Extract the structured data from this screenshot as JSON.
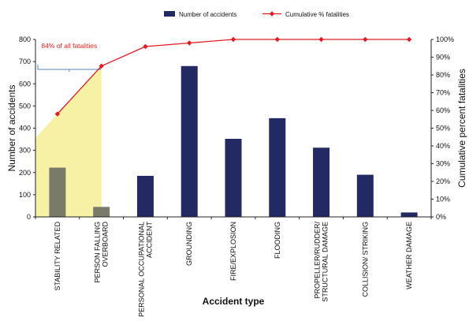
{
  "chart_data": {
    "type": "bar",
    "categories": [
      "STABILITY RELATED",
      "PERSON FALLING OVERBOARD",
      "PERSONAL OCCUPATIONAL ACCIDENT",
      "GROUNDING",
      "FIRE/EXPLOSION",
      "FLOODING",
      "PROPELLER/RUDDER/ STRUCTURAL DAMAGE",
      "COLLISION/ STRIKING",
      "WEATHER DAMAGE"
    ],
    "category_lines": [
      [
        "STABILITY RELATED"
      ],
      [
        "PERSON FALLING",
        "OVERBOARD"
      ],
      [
        "PERSONAL OCCUPATIONAL",
        "ACCIDENT"
      ],
      [
        "GROUNDING"
      ],
      [
        "FIRE/EXPLOSION"
      ],
      [
        "FLOODING"
      ],
      [
        "PROPELLER/RUDDER/",
        "STRUCTURAL DAMAGE"
      ],
      [
        "COLLISION/ STRIKING"
      ],
      [
        "WEATHER DAMAGE"
      ]
    ],
    "series": [
      {
        "name": "Number of accidents",
        "type": "bar",
        "axis": "left",
        "values": [
          222,
          45,
          185,
          680,
          352,
          445,
          312,
          190,
          20
        ]
      },
      {
        "name": "Cumulative % fatalities",
        "type": "line",
        "axis": "right",
        "values": [
          58,
          85,
          96,
          98,
          100,
          100,
          100,
          100,
          100
        ]
      }
    ],
    "xlabel": "Accident type",
    "ylabel": "Number of accidents",
    "y2label": "Cumulative percent fatalities",
    "ylim": [
      0,
      800
    ],
    "yticks": [
      "0",
      "100",
      "200",
      "300",
      "400",
      "500",
      "600",
      "700",
      "800"
    ],
    "y2lim": [
      0,
      100
    ],
    "y2ticks": [
      "0%",
      "10%",
      "20%",
      "30%",
      "40%",
      "50%",
      "60%",
      "70%",
      "80%",
      "90%",
      "100%"
    ],
    "annotation": {
      "text": "84% of all fatalities",
      "categories_spanned": [
        0,
        1
      ]
    },
    "legend_position": "top-center",
    "grid": false,
    "colors": {
      "bar": "#232a63",
      "line": "#e11b22",
      "highlight": "#f5ef9a",
      "annotation_text": "#e8211c",
      "bracket": "#5b7fc4"
    }
  }
}
